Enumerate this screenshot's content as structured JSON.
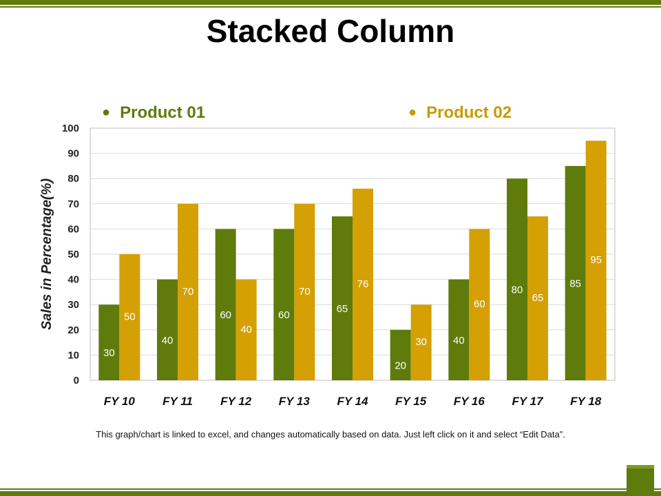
{
  "title": "Stacked Column",
  "legend": [
    "Product 01",
    "Product 02"
  ],
  "footer": "This graph/chart is linked to excel, and changes automatically based on data. Just left click on it and select “Edit Data”.",
  "colors": {
    "product01": "#5f7b0c",
    "product02": "#d4a004",
    "accent": "#5f7b0c"
  },
  "chart_data": {
    "type": "bar",
    "title": "Stacked Column",
    "categories": [
      "FY 10",
      "FY 11",
      "FY 12",
      "FY 13",
      "FY 14",
      "FY 15",
      "FY 16",
      "FY 17",
      "FY 18"
    ],
    "series": [
      {
        "name": "Product 01",
        "values": [
          30,
          40,
          60,
          60,
          65,
          20,
          40,
          80,
          85
        ]
      },
      {
        "name": "Product 02",
        "values": [
          50,
          70,
          40,
          70,
          76,
          30,
          60,
          65,
          95
        ]
      }
    ],
    "ylabel": "Sales in Percentage(%)",
    "xlabel": "",
    "ylim": [
      0,
      100
    ],
    "yticks": [
      0,
      10,
      20,
      30,
      40,
      50,
      60,
      70,
      80,
      90,
      100
    ],
    "grid": true,
    "legend_position": "top"
  }
}
